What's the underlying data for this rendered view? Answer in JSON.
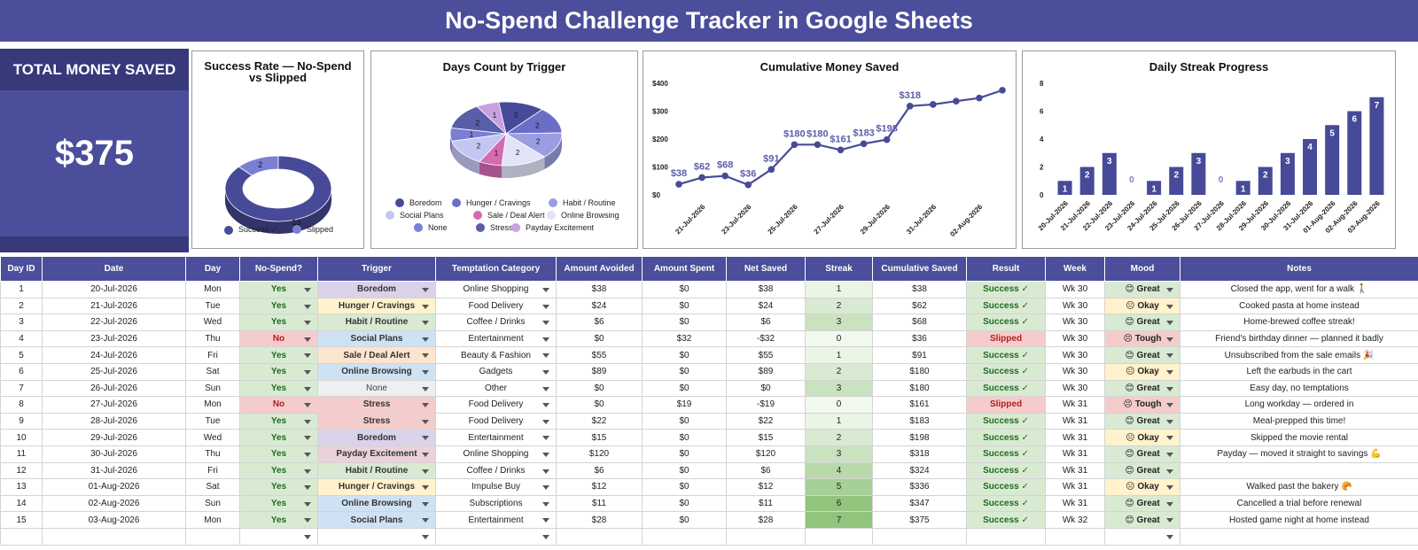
{
  "title": "No-Spend Challenge Tracker in Google Sheets",
  "kpi": {
    "label": "TOTAL MONEY SAVED",
    "value": "$375"
  },
  "charts": {
    "success": {
      "title_line1": "Success Rate — No-Spend",
      "title_line2": "vs Slipped",
      "legend": [
        "Success ✓",
        "Slipped"
      ],
      "colors": [
        "#474a98",
        "#7b7fd4"
      ]
    },
    "trigger": {
      "title": "Days Count by Trigger",
      "legend": [
        "Boredom",
        "Hunger / Cravings",
        "Habit / Routine",
        "Social Plans",
        "Sale / Deal Alert",
        "Online Browsing",
        "None",
        "Stress",
        "Payday Excitement"
      ],
      "colors": [
        "#474a98",
        "#6a6ec6",
        "#9a9de2",
        "#c4c6f2",
        "#d46ab2",
        "#e2e3f7",
        "#7b7fd4",
        "#5a5ea8",
        "#c8a0de"
      ]
    },
    "cumulative": {
      "title": "Cumulative Money Saved"
    },
    "streak": {
      "title": "Daily Streak Progress"
    }
  },
  "chart_data": [
    {
      "type": "pie",
      "title": "Success Rate — No-Spend vs Slipped",
      "categories": [
        "Success ✓",
        "Slipped"
      ],
      "values": [
        13,
        2
      ]
    },
    {
      "type": "pie",
      "title": "Days Count by Trigger",
      "categories": [
        "Boredom",
        "Hunger / Cravings",
        "Habit / Routine",
        "Social Plans",
        "Sale / Deal Alert",
        "Online Browsing",
        "None",
        "Stress",
        "Payday Excitement"
      ],
      "values": [
        2,
        2,
        2,
        2,
        1,
        2,
        1,
        2,
        1
      ]
    },
    {
      "type": "line",
      "title": "Cumulative Money Saved",
      "x": [
        "20-Jul-2026",
        "21-Jul-2026",
        "22-Jul-2026",
        "23-Jul-2026",
        "24-Jul-2026",
        "25-Jul-2026",
        "26-Jul-2026",
        "27-Jul-2026",
        "28-Jul-2026",
        "29-Jul-2026",
        "30-Jul-2026",
        "31-Jul-2026",
        "01-Aug-2026",
        "02-Aug-2026",
        "03-Aug-2026"
      ],
      "xticks": [
        "21-Jul-2026",
        "23-Jul-2026",
        "25-Jul-2026",
        "27-Jul-2026",
        "29-Jul-2026",
        "31-Jul-2026",
        "02-Aug-2026"
      ],
      "values": [
        38,
        62,
        68,
        36,
        91,
        180,
        180,
        161,
        183,
        198,
        318,
        324,
        336,
        347,
        375
      ],
      "labels": [
        "$38",
        "$62",
        "$68",
        "$36",
        "$91",
        "$180",
        "$180",
        "$161",
        "$183",
        "$198",
        "$318",
        "",
        "",
        "",
        ""
      ],
      "yticks": [
        "$0",
        "$100",
        "$200",
        "$300",
        "$400"
      ],
      "ylim": [
        0,
        400
      ]
    },
    {
      "type": "bar",
      "title": "Daily Streak Progress",
      "categories": [
        "20-Jul-2026",
        "21-Jul-2026",
        "22-Jul-2026",
        "23-Jul-2026",
        "24-Jul-2026",
        "25-Jul-2026",
        "26-Jul-2026",
        "27-Jul-2026",
        "28-Jul-2026",
        "29-Jul-2026",
        "30-Jul-2026",
        "31-Jul-2026",
        "01-Aug-2026",
        "02-Aug-2026",
        "03-Aug-2026"
      ],
      "values": [
        1,
        2,
        3,
        0,
        1,
        2,
        3,
        0,
        1,
        2,
        3,
        4,
        5,
        6,
        7
      ],
      "yticks": [
        "0",
        "2",
        "4",
        "6",
        "8"
      ],
      "ylim": [
        0,
        8
      ]
    }
  ],
  "table": {
    "headers": [
      "Day ID",
      "Date",
      "Day",
      "No-Spend?",
      "Trigger",
      "Temptation Category",
      "Amount Avoided",
      "Amount Spent",
      "Net Saved",
      "Streak",
      "Cumulative Saved",
      "Result",
      "Week",
      "Mood",
      "Notes"
    ],
    "rows": [
      [
        "1",
        "20-Jul-2026",
        "Mon",
        "Yes",
        "Boredom",
        "Online Shopping",
        "$38",
        "$0",
        "$38",
        "1",
        "$38",
        "Success ✓",
        "Wk 30",
        "😊 Great",
        "Closed the app, went for a walk 🚶"
      ],
      [
        "2",
        "21-Jul-2026",
        "Tue",
        "Yes",
        "Hunger / Cravings",
        "Food Delivery",
        "$24",
        "$0",
        "$24",
        "2",
        "$62",
        "Success ✓",
        "Wk 30",
        "😐 Okay",
        "Cooked pasta at home instead"
      ],
      [
        "3",
        "22-Jul-2026",
        "Wed",
        "Yes",
        "Habit / Routine",
        "Coffee / Drinks",
        "$6",
        "$0",
        "$6",
        "3",
        "$68",
        "Success ✓",
        "Wk 30",
        "😊 Great",
        "Home-brewed coffee streak!"
      ],
      [
        "4",
        "23-Jul-2026",
        "Thu",
        "No",
        "Social Plans",
        "Entertainment",
        "$0",
        "$32",
        "-$32",
        "0",
        "$36",
        "Slipped",
        "Wk 30",
        "😣 Tough",
        "Friend's birthday dinner — planned it badly"
      ],
      [
        "5",
        "24-Jul-2026",
        "Fri",
        "Yes",
        "Sale / Deal Alert",
        "Beauty & Fashion",
        "$55",
        "$0",
        "$55",
        "1",
        "$91",
        "Success ✓",
        "Wk 30",
        "😊 Great",
        "Unsubscribed from the sale emails 🎉"
      ],
      [
        "6",
        "25-Jul-2026",
        "Sat",
        "Yes",
        "Online Browsing",
        "Gadgets",
        "$89",
        "$0",
        "$89",
        "2",
        "$180",
        "Success ✓",
        "Wk 30",
        "😐 Okay",
        "Left the earbuds in the cart"
      ],
      [
        "7",
        "26-Jul-2026",
        "Sun",
        "Yes",
        "None",
        "Other",
        "$0",
        "$0",
        "$0",
        "3",
        "$180",
        "Success ✓",
        "Wk 30",
        "😊 Great",
        "Easy day, no temptations"
      ],
      [
        "8",
        "27-Jul-2026",
        "Mon",
        "No",
        "Stress",
        "Food Delivery",
        "$0",
        "$19",
        "-$19",
        "0",
        "$161",
        "Slipped",
        "Wk 31",
        "😣 Tough",
        "Long workday — ordered in"
      ],
      [
        "9",
        "28-Jul-2026",
        "Tue",
        "Yes",
        "Stress",
        "Food Delivery",
        "$22",
        "$0",
        "$22",
        "1",
        "$183",
        "Success ✓",
        "Wk 31",
        "😊 Great",
        "Meal-prepped this time!"
      ],
      [
        "10",
        "29-Jul-2026",
        "Wed",
        "Yes",
        "Boredom",
        "Entertainment",
        "$15",
        "$0",
        "$15",
        "2",
        "$198",
        "Success ✓",
        "Wk 31",
        "😐 Okay",
        "Skipped the movie rental"
      ],
      [
        "11",
        "30-Jul-2026",
        "Thu",
        "Yes",
        "Payday Excitement",
        "Online Shopping",
        "$120",
        "$0",
        "$120",
        "3",
        "$318",
        "Success ✓",
        "Wk 31",
        "😊 Great",
        "Payday — moved it straight to savings 💪"
      ],
      [
        "12",
        "31-Jul-2026",
        "Fri",
        "Yes",
        "Habit / Routine",
        "Coffee / Drinks",
        "$6",
        "$0",
        "$6",
        "4",
        "$324",
        "Success ✓",
        "Wk 31",
        "😊 Great",
        ""
      ],
      [
        "13",
        "01-Aug-2026",
        "Sat",
        "Yes",
        "Hunger / Cravings",
        "Impulse Buy",
        "$12",
        "$0",
        "$12",
        "5",
        "$336",
        "Success ✓",
        "Wk 31",
        "😐 Okay",
        "Walked past the bakery 🥐"
      ],
      [
        "14",
        "02-Aug-2026",
        "Sun",
        "Yes",
        "Online Browsing",
        "Subscriptions",
        "$11",
        "$0",
        "$11",
        "6",
        "$347",
        "Success ✓",
        "Wk 31",
        "😊 Great",
        "Cancelled a trial before renewal"
      ],
      [
        "15",
        "03-Aug-2026",
        "Mon",
        "Yes",
        "Social Plans",
        "Entertainment",
        "$28",
        "$0",
        "$28",
        "7",
        "$375",
        "Success ✓",
        "Wk 32",
        "😊 Great",
        "Hosted game night at home instead"
      ]
    ]
  },
  "colors": {
    "header": "#4b4e9a",
    "yes_bg": "#d9ead3",
    "yes_text": "#1e6a20",
    "no_bg": "#f4cccc",
    "no_text": "#b02020",
    "success_bg": "#d9ead3",
    "slipped_bg": "#f4cccc",
    "great_bg": "#d9ead3",
    "okay_bg": "#fff2cc",
    "tough_bg": "#f4cccc",
    "trigger_bg": {
      "Boredom": "#d9d2e9",
      "Hunger / Cravings": "#fff2cc",
      "Habit / Routine": "#d9ead3",
      "Social Plans": "#cfe2f3",
      "Sale / Deal Alert": "#fce5cd",
      "Online Browsing": "#cfe2f3",
      "None": "#efefef",
      "Stress": "#f4cccc",
      "Payday Excitement": "#ead1dc"
    },
    "streak_bg": [
      "#f1f8ee",
      "#eaf5e5",
      "#d9ead3",
      "#c9e2bf",
      "#b8d9aa",
      "#a6d096",
      "#93c47d",
      "#93c47d"
    ]
  }
}
